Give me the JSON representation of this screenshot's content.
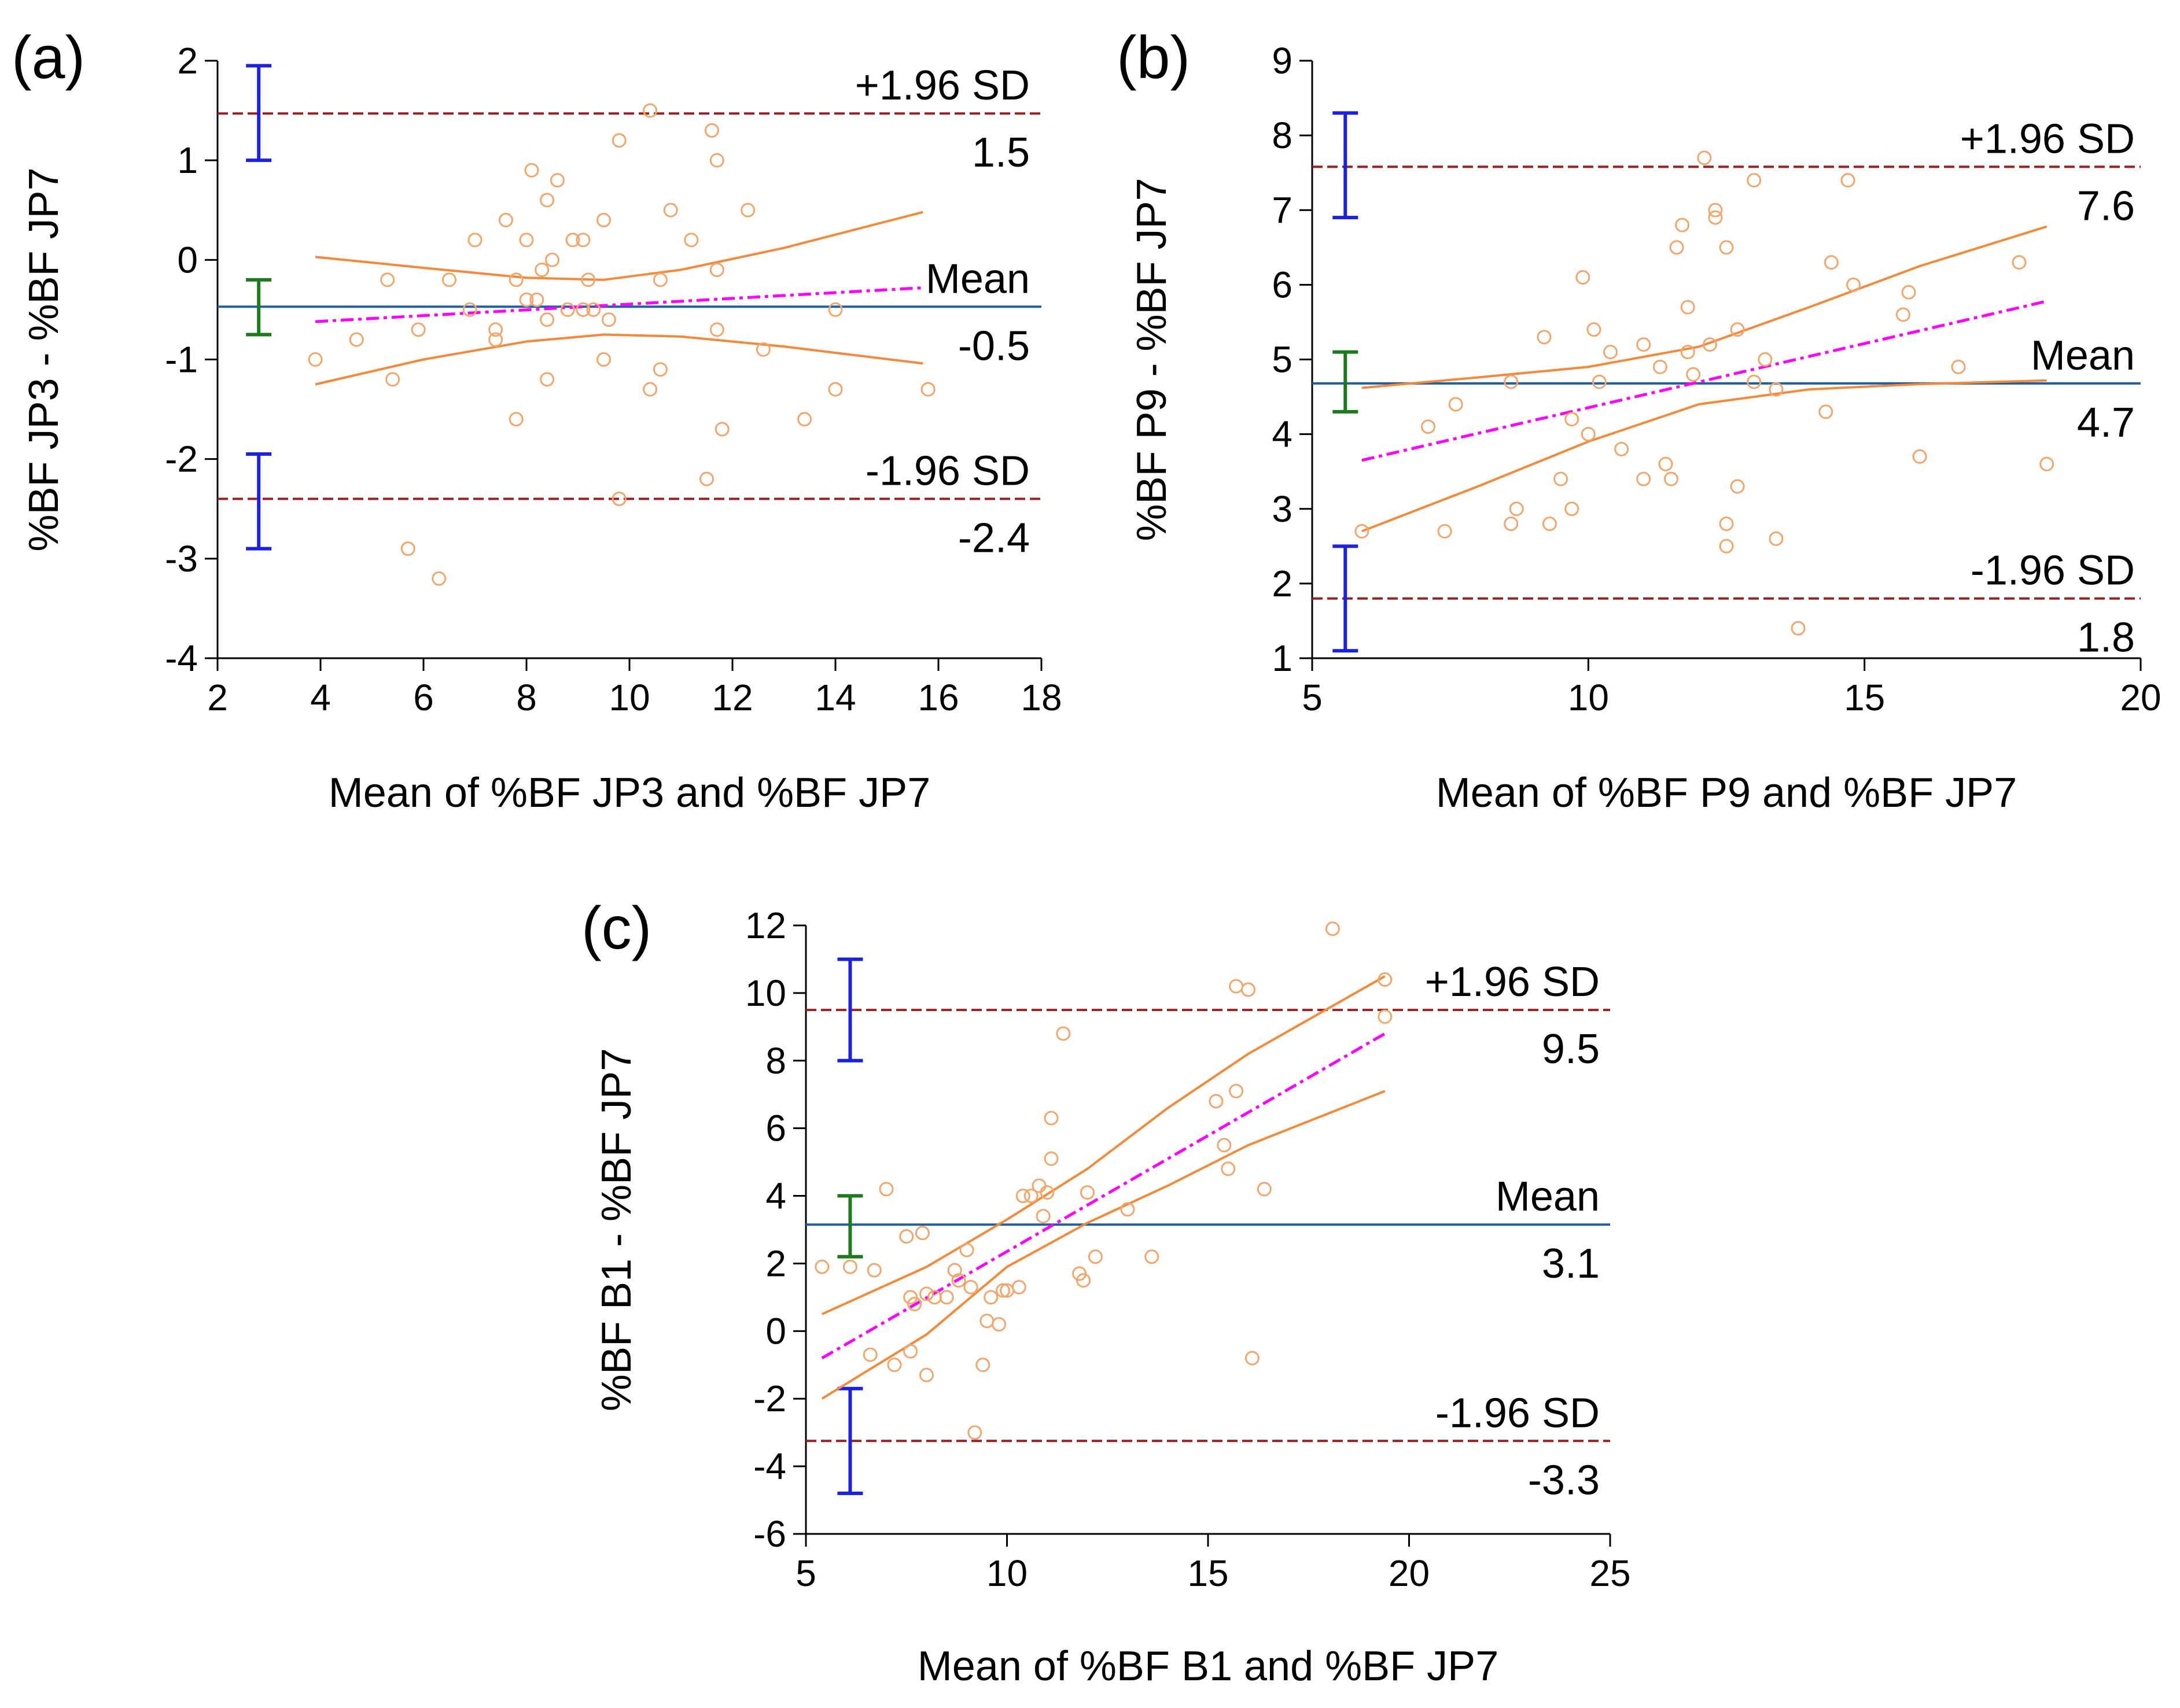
{
  "colors": {
    "mean_line": "#1f5fa6",
    "sd_line": "#9b1f1f",
    "regression": "#ff00ff",
    "ci_curve": "#f4893a",
    "points": "#f6a56a",
    "sd_ci_bar": "#1a22e0",
    "mean_ci_bar": "#1c7a1c"
  },
  "chart_data": [
    {
      "panel": "(a)",
      "type": "scatter",
      "subtype": "bland-altman",
      "xlabel": "Mean of %BF JP3 and %BF JP7",
      "ylabel": "%BF JP3 - %BF JP7",
      "xlim": [
        2,
        18
      ],
      "ylim": [
        -4,
        2
      ],
      "xticks": [
        2,
        4,
        6,
        8,
        10,
        12,
        14,
        16,
        18
      ],
      "yticks": [
        -4,
        -3,
        -2,
        -1,
        0,
        1,
        2
      ],
      "mean": -0.47,
      "upper_loa": 1.47,
      "lower_loa": -2.4,
      "labels": {
        "upper": "+1.96 SD",
        "upper_value": "1.5",
        "mean": "Mean",
        "mean_value": "-0.5",
        "lower": "-1.96 SD",
        "lower_value": "-2.4"
      },
      "mean_ci": [
        -0.75,
        -0.2
      ],
      "upper_ci": [
        1.0,
        1.95
      ],
      "lower_ci": [
        -2.9,
        -1.95
      ],
      "ci_marker_x": 2.8,
      "regression": [
        [
          3.9,
          -0.62
        ],
        [
          15.7,
          -0.28
        ]
      ],
      "ci_upper_curve": [
        [
          3.9,
          0.03
        ],
        [
          6,
          -0.08
        ],
        [
          8,
          -0.18
        ],
        [
          9.5,
          -0.2
        ],
        [
          11,
          -0.1
        ],
        [
          13,
          0.12
        ],
        [
          15.7,
          0.48
        ]
      ],
      "ci_lower_curve": [
        [
          3.9,
          -1.25
        ],
        [
          6,
          -1.0
        ],
        [
          8,
          -0.82
        ],
        [
          9.5,
          -0.75
        ],
        [
          11,
          -0.77
        ],
        [
          13,
          -0.87
        ],
        [
          15.7,
          -1.04
        ]
      ],
      "points": [
        [
          3.9,
          -1.0
        ],
        [
          4.7,
          -0.8
        ],
        [
          5.3,
          -0.2
        ],
        [
          5.4,
          -1.2
        ],
        [
          5.7,
          -2.9
        ],
        [
          5.9,
          -0.7
        ],
        [
          6.3,
          -3.2
        ],
        [
          6.5,
          -0.2
        ],
        [
          6.9,
          -0.5
        ],
        [
          7.0,
          0.2
        ],
        [
          7.4,
          -0.7
        ],
        [
          7.4,
          -0.8
        ],
        [
          7.6,
          0.4
        ],
        [
          7.8,
          -0.2
        ],
        [
          7.8,
          -1.6
        ],
        [
          8.0,
          0.2
        ],
        [
          8.0,
          -0.4
        ],
        [
          8.1,
          0.9
        ],
        [
          8.2,
          -0.4
        ],
        [
          8.3,
          -0.1
        ],
        [
          8.4,
          0.6
        ],
        [
          8.4,
          -0.6
        ],
        [
          8.4,
          -1.2
        ],
        [
          8.5,
          0.0
        ],
        [
          8.6,
          0.8
        ],
        [
          8.8,
          -0.5
        ],
        [
          8.9,
          0.2
        ],
        [
          9.1,
          0.2
        ],
        [
          9.1,
          -0.5
        ],
        [
          9.2,
          -0.2
        ],
        [
          9.3,
          -0.5
        ],
        [
          9.5,
          -1.0
        ],
        [
          9.5,
          0.4
        ],
        [
          9.6,
          -0.6
        ],
        [
          9.8,
          1.2
        ],
        [
          9.8,
          -2.4
        ],
        [
          10.4,
          1.5
        ],
        [
          10.4,
          -1.3
        ],
        [
          10.6,
          -0.2
        ],
        [
          10.6,
          -1.1
        ],
        [
          10.8,
          0.5
        ],
        [
          11.2,
          0.2
        ],
        [
          11.5,
          -2.2
        ],
        [
          11.6,
          1.3
        ],
        [
          11.7,
          1.0
        ],
        [
          11.7,
          -0.1
        ],
        [
          11.7,
          -0.7
        ],
        [
          11.8,
          -1.7
        ],
        [
          12.3,
          0.5
        ],
        [
          12.6,
          -0.9
        ],
        [
          13.4,
          -1.6
        ],
        [
          14.0,
          -0.5
        ],
        [
          14.0,
          -1.3
        ],
        [
          15.8,
          -1.3
        ]
      ]
    },
    {
      "panel": "(b)",
      "type": "scatter",
      "subtype": "bland-altman",
      "xlabel": "Mean of %BF P9 and %BF JP7",
      "ylabel": "%BF P9 - %BF JP7",
      "xlim": [
        5,
        20
      ],
      "ylim": [
        1,
        9
      ],
      "xticks": [
        5,
        10,
        15,
        20
      ],
      "yticks": [
        1,
        2,
        3,
        4,
        5,
        6,
        7,
        8,
        9
      ],
      "mean": 4.68,
      "upper_loa": 7.58,
      "lower_loa": 1.8,
      "labels": {
        "upper": "+1.96 SD",
        "upper_value": "7.6",
        "mean": "Mean",
        "mean_value": "4.7",
        "lower": "-1.96 SD",
        "lower_value": "1.8"
      },
      "mean_ci": [
        4.3,
        5.1
      ],
      "upper_ci": [
        6.9,
        8.3
      ],
      "lower_ci": [
        1.1,
        2.5
      ],
      "ci_marker_x": 5.6,
      "regression": [
        [
          5.9,
          3.65
        ],
        [
          18.3,
          5.78
        ]
      ],
      "ci_upper_curve": [
        [
          5.9,
          4.62
        ],
        [
          8,
          4.76
        ],
        [
          10,
          4.9
        ],
        [
          12,
          5.17
        ],
        [
          14,
          5.7
        ],
        [
          16,
          6.25
        ],
        [
          18.3,
          6.78
        ]
      ],
      "ci_lower_curve": [
        [
          5.9,
          2.7
        ],
        [
          8,
          3.3
        ],
        [
          10,
          3.9
        ],
        [
          12,
          4.4
        ],
        [
          14,
          4.6
        ],
        [
          16,
          4.67
        ],
        [
          18.3,
          4.72
        ]
      ],
      "points": [
        [
          5.9,
          2.7
        ],
        [
          7.1,
          4.1
        ],
        [
          7.4,
          2.7
        ],
        [
          7.6,
          4.4
        ],
        [
          8.6,
          4.7
        ],
        [
          8.6,
          2.8
        ],
        [
          8.7,
          3.0
        ],
        [
          9.2,
          5.3
        ],
        [
          9.3,
          2.8
        ],
        [
          9.5,
          3.4
        ],
        [
          9.7,
          4.2
        ],
        [
          9.7,
          3.0
        ],
        [
          9.9,
          6.1
        ],
        [
          10.0,
          4.0
        ],
        [
          10.1,
          5.4
        ],
        [
          10.2,
          4.7
        ],
        [
          10.4,
          5.1
        ],
        [
          10.6,
          3.8
        ],
        [
          11.0,
          5.2
        ],
        [
          11.0,
          3.4
        ],
        [
          11.3,
          4.9
        ],
        [
          11.4,
          3.6
        ],
        [
          11.5,
          3.4
        ],
        [
          11.6,
          6.5
        ],
        [
          11.7,
          6.8
        ],
        [
          11.8,
          5.7
        ],
        [
          11.8,
          5.1
        ],
        [
          11.9,
          4.8
        ],
        [
          12.1,
          7.7
        ],
        [
          12.2,
          5.2
        ],
        [
          12.3,
          6.9
        ],
        [
          12.3,
          7.0
        ],
        [
          12.5,
          6.5
        ],
        [
          12.5,
          2.5
        ],
        [
          12.5,
          2.8
        ],
        [
          12.7,
          5.4
        ],
        [
          12.7,
          3.3
        ],
        [
          13.0,
          7.4
        ],
        [
          13.0,
          4.7
        ],
        [
          13.2,
          5.0
        ],
        [
          13.4,
          4.6
        ],
        [
          13.4,
          2.6
        ],
        [
          13.8,
          1.4
        ],
        [
          14.3,
          4.3
        ],
        [
          14.4,
          6.3
        ],
        [
          14.7,
          7.4
        ],
        [
          14.8,
          6.0
        ],
        [
          15.7,
          5.6
        ],
        [
          15.8,
          5.9
        ],
        [
          16.0,
          3.7
        ],
        [
          16.7,
          4.9
        ],
        [
          17.8,
          6.3
        ],
        [
          18.3,
          3.6
        ]
      ]
    },
    {
      "panel": "(c)",
      "type": "scatter",
      "subtype": "bland-altman",
      "xlabel": "Mean of %BF B1 and %BF JP7",
      "ylabel": "%BF B1 - %BF JP7",
      "xlim": [
        5,
        25
      ],
      "ylim": [
        -6,
        12
      ],
      "xticks": [
        5,
        10,
        15,
        20,
        25
      ],
      "yticks": [
        -6,
        -4,
        -2,
        0,
        2,
        4,
        6,
        8,
        10,
        12
      ],
      "mean": 3.15,
      "upper_loa": 9.5,
      "lower_loa": -3.25,
      "labels": {
        "upper": "+1.96 SD",
        "upper_value": "9.5",
        "mean": "Mean",
        "mean_value": "3.1",
        "lower": "-1.96 SD",
        "lower_value": "-3.3"
      },
      "mean_ci": [
        2.2,
        4.0
      ],
      "upper_ci": [
        8.0,
        11.0
      ],
      "lower_ci": [
        -4.8,
        -1.7
      ],
      "ci_marker_x": 6.1,
      "regression": [
        [
          5.4,
          -0.8
        ],
        [
          19.4,
          8.8
        ]
      ],
      "ci_upper_curve": [
        [
          5.4,
          0.5
        ],
        [
          8,
          1.9
        ],
        [
          10,
          3.3
        ],
        [
          12,
          4.8
        ],
        [
          14,
          6.6
        ],
        [
          16,
          8.2
        ],
        [
          19.4,
          10.5
        ]
      ],
      "ci_lower_curve": [
        [
          5.4,
          -2.0
        ],
        [
          8,
          -0.1
        ],
        [
          10,
          1.9
        ],
        [
          12,
          3.2
        ],
        [
          14,
          4.3
        ],
        [
          16,
          5.5
        ],
        [
          19.4,
          7.1
        ]
      ],
      "points": [
        [
          5.4,
          1.9
        ],
        [
          6.1,
          1.9
        ],
        [
          6.6,
          -0.7
        ],
        [
          6.7,
          1.8
        ],
        [
          7.0,
          4.2
        ],
        [
          7.2,
          -1.0
        ],
        [
          7.5,
          2.8
        ],
        [
          7.6,
          1.0
        ],
        [
          7.6,
          -0.6
        ],
        [
          7.7,
          0.8
        ],
        [
          7.9,
          2.9
        ],
        [
          8.0,
          1.1
        ],
        [
          8.0,
          -1.3
        ],
        [
          8.2,
          1.0
        ],
        [
          8.5,
          1.0
        ],
        [
          8.7,
          1.8
        ],
        [
          8.8,
          1.5
        ],
        [
          9.0,
          2.4
        ],
        [
          9.1,
          1.3
        ],
        [
          9.2,
          -3.0
        ],
        [
          9.4,
          -1.0
        ],
        [
          9.5,
          0.3
        ],
        [
          9.6,
          1.0
        ],
        [
          9.8,
          0.2
        ],
        [
          9.9,
          1.2
        ],
        [
          10.0,
          1.2
        ],
        [
          10.3,
          1.3
        ],
        [
          10.4,
          4.0
        ],
        [
          10.6,
          4.0
        ],
        [
          10.8,
          4.3
        ],
        [
          10.9,
          3.4
        ],
        [
          11.0,
          4.1
        ],
        [
          11.1,
          5.1
        ],
        [
          11.1,
          6.3
        ],
        [
          11.4,
          8.8
        ],
        [
          11.8,
          1.7
        ],
        [
          11.9,
          1.5
        ],
        [
          12.0,
          4.1
        ],
        [
          12.2,
          2.2
        ],
        [
          13.0,
          3.6
        ],
        [
          13.6,
          2.2
        ],
        [
          15.2,
          6.8
        ],
        [
          15.4,
          5.5
        ],
        [
          15.5,
          4.8
        ],
        [
          15.7,
          10.2
        ],
        [
          16.0,
          10.1
        ],
        [
          16.1,
          -0.8
        ],
        [
          16.4,
          4.2
        ],
        [
          15.7,
          7.1
        ],
        [
          18.1,
          11.9
        ],
        [
          19.4,
          10.4
        ],
        [
          19.4,
          9.3
        ]
      ]
    }
  ]
}
